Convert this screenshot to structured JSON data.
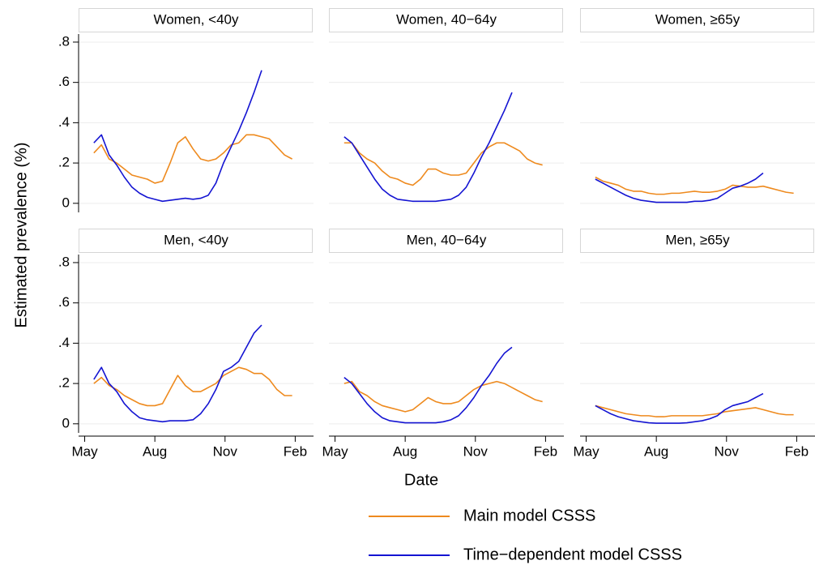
{
  "chart_data": [
    {
      "type": "line",
      "title": "Women, <40y",
      "x": [
        12,
        22,
        32,
        42,
        52,
        62,
        72,
        82,
        92,
        102,
        112,
        122,
        132,
        142,
        152,
        162,
        172,
        182,
        192,
        202,
        212,
        222,
        232,
        242,
        252,
        262,
        272
      ],
      "series": [
        {
          "name": "Main model CSSS",
          "color": "#ee8a1e",
          "values": [
            0.25,
            0.29,
            0.22,
            0.2,
            0.17,
            0.14,
            0.13,
            0.12,
            0.1,
            0.11,
            0.2,
            0.3,
            0.33,
            0.27,
            0.22,
            0.21,
            0.22,
            0.25,
            0.29,
            0.3,
            0.34,
            0.34,
            0.33,
            0.32,
            0.28,
            0.24,
            0.22
          ]
        },
        {
          "name": "Time−dependent model CSSS",
          "color": "#1414d2",
          "values": [
            0.3,
            0.34,
            0.24,
            0.19,
            0.13,
            0.08,
            0.05,
            0.03,
            0.02,
            0.01,
            0.015,
            0.02,
            0.025,
            0.02,
            0.025,
            0.04,
            0.1,
            0.2,
            0.28,
            0.36,
            0.45,
            0.55,
            0.66,
            null,
            null,
            null,
            null
          ]
        }
      ],
      "xlim": [
        -8,
        300
      ],
      "ylim": [
        -0.045,
        0.84
      ],
      "yticks": [
        {
          "value": 0,
          "label": "0"
        },
        {
          "value": 0.2,
          "label": ".2"
        },
        {
          "value": 0.4,
          "label": ".4"
        },
        {
          "value": 0.6,
          "label": ".6"
        },
        {
          "value": 0.8,
          "label": ".8"
        }
      ],
      "grid": true
    },
    {
      "type": "line",
      "title": "Women, 40−64y",
      "x": [
        12,
        22,
        32,
        42,
        52,
        62,
        72,
        82,
        92,
        102,
        112,
        122,
        132,
        142,
        152,
        162,
        172,
        182,
        192,
        202,
        212,
        222,
        232,
        242,
        252,
        262,
        272
      ],
      "series": [
        {
          "color": "#ee8a1e",
          "values": [
            0.3,
            0.3,
            0.25,
            0.22,
            0.2,
            0.16,
            0.13,
            0.12,
            0.1,
            0.09,
            0.12,
            0.17,
            0.17,
            0.15,
            0.14,
            0.14,
            0.15,
            0.2,
            0.25,
            0.28,
            0.3,
            0.3,
            0.28,
            0.26,
            0.22,
            0.2,
            0.19
          ]
        },
        {
          "color": "#1414d2",
          "values": [
            0.33,
            0.3,
            0.24,
            0.18,
            0.12,
            0.07,
            0.04,
            0.02,
            0.015,
            0.01,
            0.01,
            0.01,
            0.01,
            0.015,
            0.02,
            0.04,
            0.08,
            0.15,
            0.23,
            0.3,
            0.38,
            0.46,
            0.55,
            null,
            null,
            null,
            null
          ]
        }
      ],
      "xlim": [
        -8,
        300
      ],
      "ylim": [
        -0.045,
        0.84
      ],
      "yticks": [
        {
          "value": 0,
          "label": "0"
        },
        {
          "value": 0.2,
          "label": ".2"
        },
        {
          "value": 0.4,
          "label": ".4"
        },
        {
          "value": 0.6,
          "label": ".6"
        },
        {
          "value": 0.8,
          "label": ".8"
        }
      ],
      "grid": true
    },
    {
      "type": "line",
      "title": "Women, ≥65y",
      "x": [
        12,
        22,
        32,
        42,
        52,
        62,
        72,
        82,
        92,
        102,
        112,
        122,
        132,
        142,
        152,
        162,
        172,
        182,
        192,
        202,
        212,
        222,
        232,
        242,
        252,
        262,
        272
      ],
      "series": [
        {
          "color": "#ee8a1e",
          "values": [
            0.13,
            0.11,
            0.1,
            0.09,
            0.07,
            0.06,
            0.06,
            0.05,
            0.045,
            0.045,
            0.05,
            0.05,
            0.055,
            0.06,
            0.055,
            0.055,
            0.06,
            0.07,
            0.09,
            0.085,
            0.08,
            0.08,
            0.085,
            0.075,
            0.065,
            0.055,
            0.05
          ]
        },
        {
          "color": "#1414d2",
          "values": [
            0.12,
            0.1,
            0.08,
            0.06,
            0.04,
            0.025,
            0.015,
            0.01,
            0.005,
            0.005,
            0.005,
            0.005,
            0.005,
            0.01,
            0.01,
            0.015,
            0.025,
            0.05,
            0.075,
            0.085,
            0.1,
            0.12,
            0.15,
            null,
            null,
            null,
            null
          ]
        }
      ],
      "xlim": [
        -8,
        300
      ],
      "ylim": [
        -0.045,
        0.84
      ],
      "yticks": [
        {
          "value": 0,
          "label": "0"
        },
        {
          "value": 0.2,
          "label": ".2"
        },
        {
          "value": 0.4,
          "label": ".4"
        },
        {
          "value": 0.6,
          "label": ".6"
        },
        {
          "value": 0.8,
          "label": ".8"
        }
      ],
      "grid": true
    },
    {
      "type": "line",
      "title": "Men, <40y",
      "x": [
        12,
        22,
        32,
        42,
        52,
        62,
        72,
        82,
        92,
        102,
        112,
        122,
        132,
        142,
        152,
        162,
        172,
        182,
        192,
        202,
        212,
        222,
        232,
        242,
        252,
        262,
        272
      ],
      "series": [
        {
          "color": "#ee8a1e",
          "values": [
            0.2,
            0.23,
            0.19,
            0.17,
            0.14,
            0.12,
            0.1,
            0.09,
            0.09,
            0.1,
            0.17,
            0.24,
            0.19,
            0.16,
            0.16,
            0.18,
            0.2,
            0.24,
            0.26,
            0.28,
            0.27,
            0.25,
            0.25,
            0.22,
            0.17,
            0.14,
            0.14
          ]
        },
        {
          "color": "#1414d2",
          "values": [
            0.22,
            0.28,
            0.2,
            0.16,
            0.1,
            0.06,
            0.03,
            0.02,
            0.015,
            0.01,
            0.015,
            0.015,
            0.015,
            0.02,
            0.05,
            0.1,
            0.17,
            0.26,
            0.28,
            0.31,
            0.38,
            0.45,
            0.49,
            null,
            null,
            null,
            null
          ]
        }
      ],
      "xlim": [
        -8,
        300
      ],
      "ylim": [
        -0.045,
        0.84
      ],
      "xticks": [
        {
          "value": 0,
          "label": "May"
        },
        {
          "value": 92,
          "label": "Aug"
        },
        {
          "value": 184,
          "label": "Nov"
        },
        {
          "value": 276,
          "label": "Feb"
        }
      ],
      "yticks": [
        {
          "value": 0,
          "label": "0"
        },
        {
          "value": 0.2,
          "label": ".2"
        },
        {
          "value": 0.4,
          "label": ".4"
        },
        {
          "value": 0.6,
          "label": ".6"
        },
        {
          "value": 0.8,
          "label": ".8"
        }
      ],
      "grid": true
    },
    {
      "type": "line",
      "title": "Men, 40−64y",
      "x": [
        12,
        22,
        32,
        42,
        52,
        62,
        72,
        82,
        92,
        102,
        112,
        122,
        132,
        142,
        152,
        162,
        172,
        182,
        192,
        202,
        212,
        222,
        232,
        242,
        252,
        262,
        272
      ],
      "series": [
        {
          "color": "#ee8a1e",
          "values": [
            0.2,
            0.21,
            0.16,
            0.14,
            0.11,
            0.09,
            0.08,
            0.07,
            0.06,
            0.07,
            0.1,
            0.13,
            0.11,
            0.1,
            0.1,
            0.11,
            0.14,
            0.17,
            0.19,
            0.2,
            0.21,
            0.2,
            0.18,
            0.16,
            0.14,
            0.12,
            0.11
          ]
        },
        {
          "color": "#1414d2",
          "values": [
            0.23,
            0.2,
            0.15,
            0.1,
            0.06,
            0.03,
            0.015,
            0.01,
            0.005,
            0.005,
            0.005,
            0.005,
            0.005,
            0.01,
            0.02,
            0.04,
            0.08,
            0.13,
            0.19,
            0.24,
            0.3,
            0.35,
            0.38,
            null,
            null,
            null,
            null
          ]
        }
      ],
      "xlim": [
        -8,
        300
      ],
      "ylim": [
        -0.045,
        0.84
      ],
      "xticks": [
        {
          "value": 0,
          "label": "May"
        },
        {
          "value": 92,
          "label": "Aug"
        },
        {
          "value": 184,
          "label": "Nov"
        },
        {
          "value": 276,
          "label": "Feb"
        }
      ],
      "yticks": [
        {
          "value": 0,
          "label": "0"
        },
        {
          "value": 0.2,
          "label": ".2"
        },
        {
          "value": 0.4,
          "label": ".4"
        },
        {
          "value": 0.6,
          "label": ".6"
        },
        {
          "value": 0.8,
          "label": ".8"
        }
      ],
      "grid": true
    },
    {
      "type": "line",
      "title": "Men, ≥65y",
      "x": [
        12,
        22,
        32,
        42,
        52,
        62,
        72,
        82,
        92,
        102,
        112,
        122,
        132,
        142,
        152,
        162,
        172,
        182,
        192,
        202,
        212,
        222,
        232,
        242,
        252,
        262,
        272
      ],
      "series": [
        {
          "color": "#ee8a1e",
          "values": [
            0.09,
            0.08,
            0.07,
            0.06,
            0.05,
            0.045,
            0.04,
            0.04,
            0.035,
            0.035,
            0.04,
            0.04,
            0.04,
            0.04,
            0.04,
            0.045,
            0.05,
            0.06,
            0.065,
            0.07,
            0.075,
            0.08,
            0.07,
            0.06,
            0.05,
            0.045,
            0.045
          ]
        },
        {
          "color": "#1414d2",
          "values": [
            0.09,
            0.07,
            0.05,
            0.035,
            0.025,
            0.015,
            0.01,
            0.005,
            0.003,
            0.003,
            0.003,
            0.003,
            0.005,
            0.01,
            0.015,
            0.025,
            0.04,
            0.07,
            0.09,
            0.1,
            0.11,
            0.13,
            0.15,
            null,
            null,
            null,
            null
          ]
        }
      ],
      "xlim": [
        -8,
        300
      ],
      "ylim": [
        -0.045,
        0.84
      ],
      "xticks": [
        {
          "value": 0,
          "label": "May"
        },
        {
          "value": 92,
          "label": "Aug"
        },
        {
          "value": 184,
          "label": "Nov"
        },
        {
          "value": 276,
          "label": "Feb"
        }
      ],
      "yticks": [
        {
          "value": 0,
          "label": "0"
        },
        {
          "value": 0.2,
          "label": ".2"
        },
        {
          "value": 0.4,
          "label": ".4"
        },
        {
          "value": 0.6,
          "label": ".6"
        },
        {
          "value": 0.8,
          "label": ".8"
        }
      ],
      "grid": true
    }
  ],
  "y_label": "Estimated prevalence (%)",
  "x_label": "Date"
}
